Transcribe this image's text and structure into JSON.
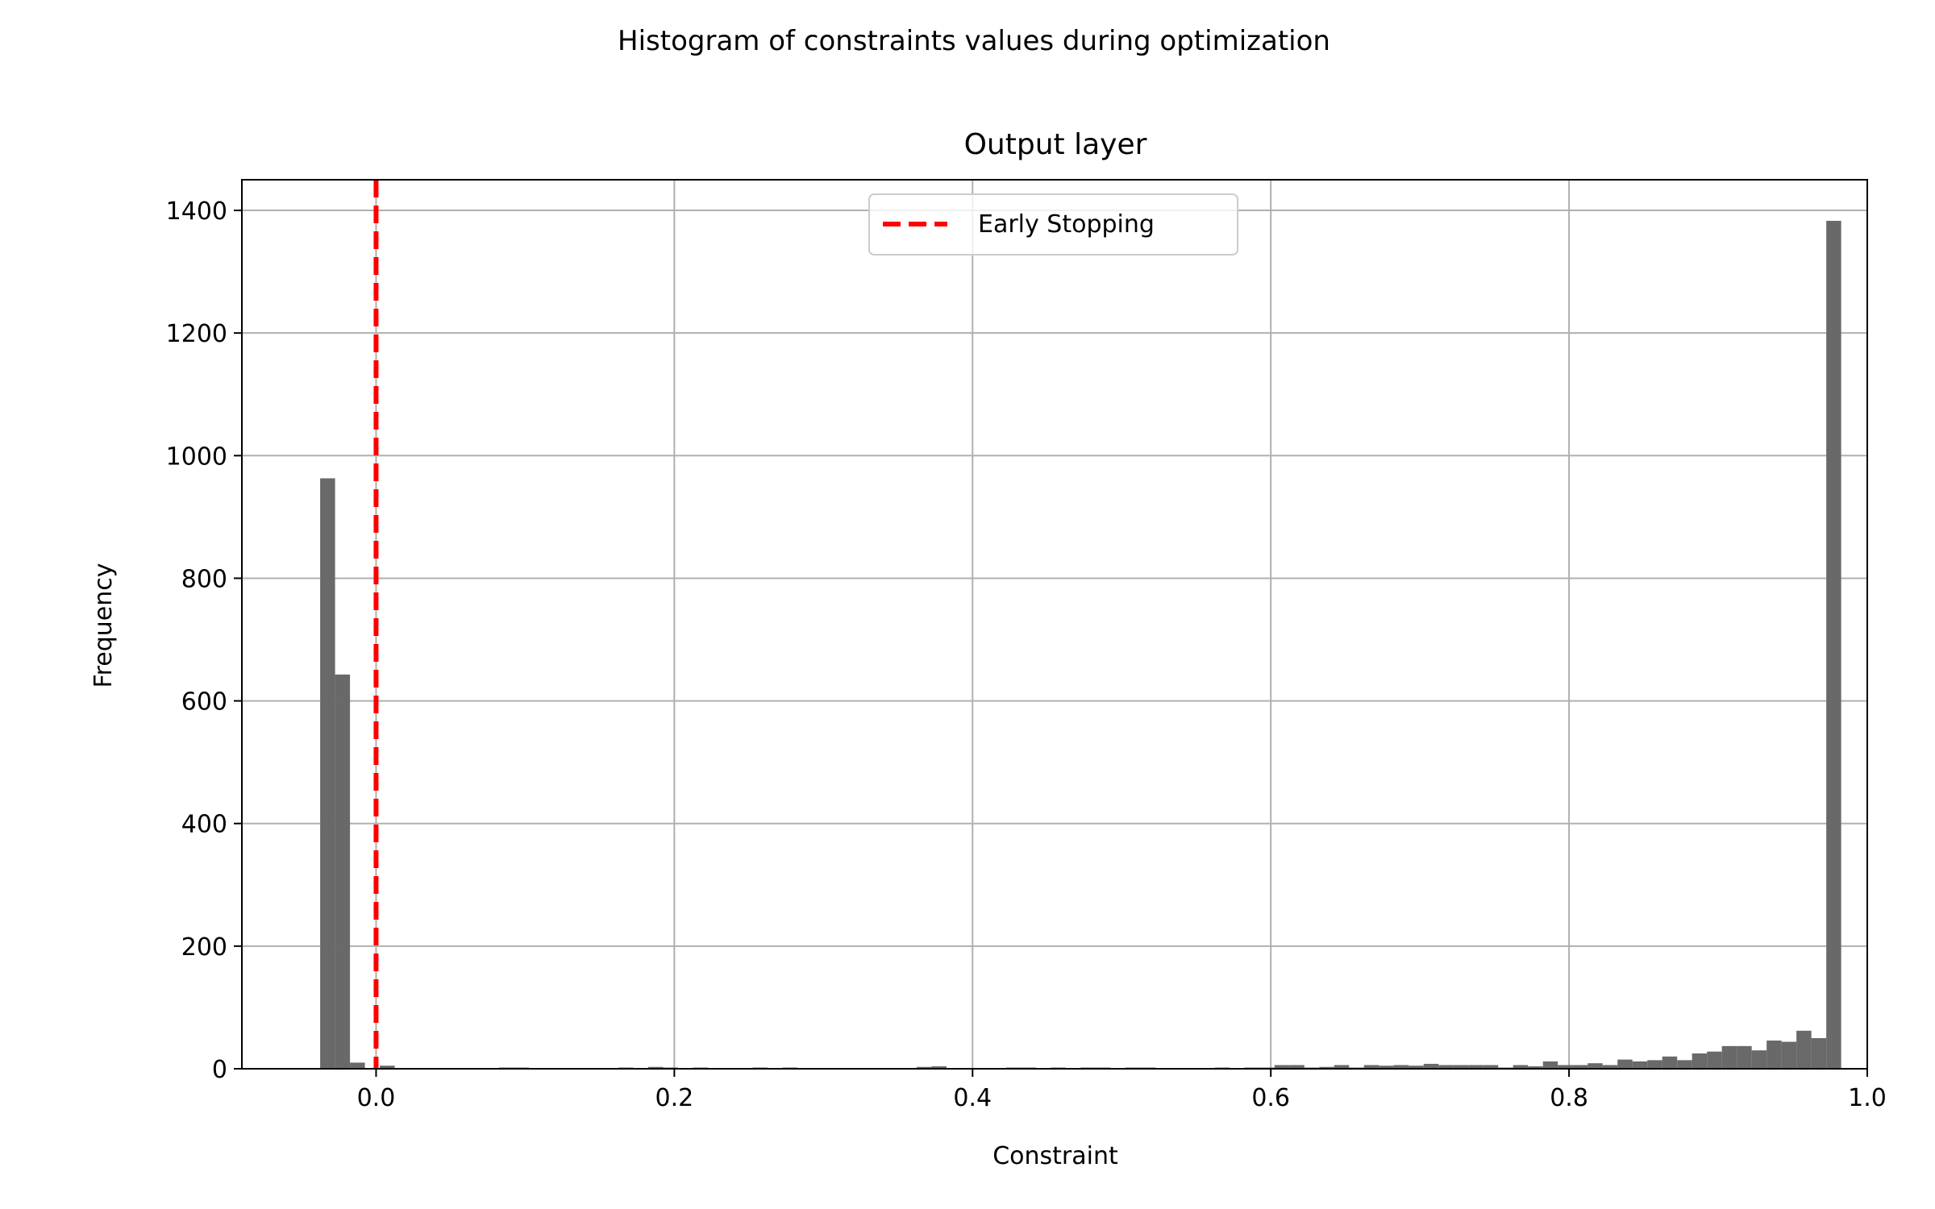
{
  "chart_data": {
    "type": "bar",
    "suptitle": "Histogram of constraints values during optimization",
    "title": "Output layer",
    "xlabel": "Constraint",
    "ylabel": "Frequency",
    "xlim": [
      -0.09,
      1.0
    ],
    "ylim": [
      0,
      1450
    ],
    "xticks": [
      0.0,
      0.2,
      0.4,
      0.6,
      0.8,
      1.0
    ],
    "xtick_labels": [
      "0.0",
      "0.2",
      "0.4",
      "0.6",
      "0.8",
      "1.0"
    ],
    "yticks": [
      0,
      200,
      400,
      600,
      800,
      1000,
      1200,
      1400
    ],
    "ytick_labels": [
      "0",
      "200",
      "400",
      "600",
      "800",
      "1000",
      "1200",
      "1400"
    ],
    "grid": true,
    "bar_color": "#696969",
    "bin_start": -0.0375,
    "bin_width": 0.01,
    "counts": [
      963,
      643,
      10,
      1,
      5,
      1,
      1,
      1,
      1,
      1,
      1,
      1,
      2,
      2,
      1,
      1,
      1,
      1,
      1,
      1,
      2,
      1,
      3,
      2,
      1,
      2,
      1,
      1,
      1,
      2,
      1,
      2,
      1,
      1,
      1,
      1,
      1,
      1,
      1,
      1,
      3,
      4,
      1,
      1,
      1,
      1,
      2,
      2,
      1,
      2,
      1,
      2,
      2,
      1,
      2,
      2,
      1,
      1,
      1,
      1,
      2,
      1,
      2,
      2,
      6,
      6,
      2,
      3,
      6,
      2,
      6,
      5,
      6,
      5,
      8,
      6,
      6,
      6,
      6,
      2,
      6,
      4,
      12,
      6,
      6,
      9,
      6,
      15,
      12,
      14,
      20,
      14,
      25,
      28,
      37,
      37,
      30,
      46,
      44,
      62,
      50,
      1383
    ],
    "legend": {
      "location": "upper center",
      "entries": [
        {
          "label": "Early Stopping",
          "style": "dashed-line",
          "color": "#ff0000"
        }
      ]
    },
    "annotations": [
      {
        "type": "vertical-line",
        "x": 0.0,
        "style": "dashed",
        "color": "#ff0000",
        "legend_label": "Early Stopping"
      }
    ]
  }
}
